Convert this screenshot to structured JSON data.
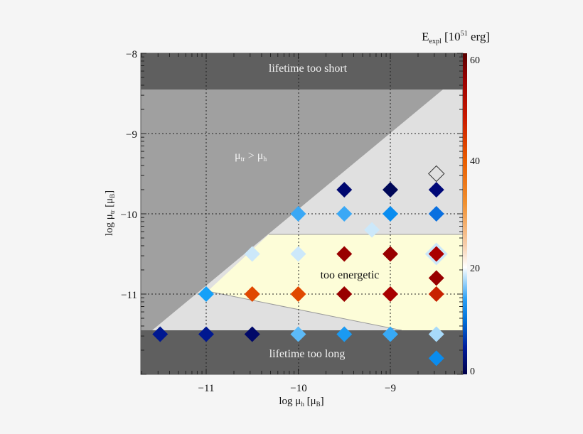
{
  "chart_data": {
    "type": "scatter",
    "title": "",
    "xlabel": "log μ_h [μ_B]",
    "ylabel": "log μ_tr [μ_B]",
    "colorbar_label": "E_expl [10^51 erg]",
    "xlim": [
      -11.7,
      -8.25
    ],
    "ylim": [
      -12.0,
      -8.0
    ],
    "x_ticks": [
      -11,
      -10,
      -9
    ],
    "x_tick_labels": [
      "−11",
      "−10",
      "−9"
    ],
    "y_ticks": [
      -8,
      -9,
      -10,
      -11
    ],
    "y_tick_labels": [
      "−8",
      "−9",
      "−10",
      "−11"
    ],
    "colorbar": {
      "range": [
        0,
        60
      ],
      "ticks": [
        0,
        20,
        40,
        60
      ],
      "tick_labels": [
        "0",
        "20",
        "40",
        "60"
      ],
      "stops": [
        {
          "v": 0,
          "color": "#00004a"
        },
        {
          "v": 5,
          "color": "#001c9c"
        },
        {
          "v": 10,
          "color": "#0070d8"
        },
        {
          "v": 14,
          "color": "#2aa0f5"
        },
        {
          "v": 18,
          "color": "#b8e0fb"
        },
        {
          "v": 20,
          "color": "#ffffff"
        },
        {
          "v": 24,
          "color": "#f7d0b0"
        },
        {
          "v": 32,
          "color": "#f09030"
        },
        {
          "v": 40,
          "color": "#e85c00"
        },
        {
          "v": 48,
          "color": "#c81800"
        },
        {
          "v": 55,
          "color": "#9a0000"
        },
        {
          "v": 60,
          "color": "#5a0000"
        }
      ]
    },
    "grid": true,
    "regions": [
      {
        "name": "lifetime too short",
        "label": "lifetime too short",
        "color": "#5f5f5f"
      },
      {
        "name": "mu_tr greater than mu_h",
        "label_main": "μ",
        "label_sub1": "tr",
        "label_mid": " > μ",
        "label_sub2": "h",
        "color": "#a0a0a0"
      },
      {
        "name": "allowed",
        "color": "#e0e0e0"
      },
      {
        "name": "too energetic",
        "label": "too energetic",
        "color": "#fdfdd8"
      },
      {
        "name": "lifetime too long",
        "label": "lifetime too long",
        "color": "#5f5f5f"
      }
    ],
    "points": [
      {
        "x": -11.5,
        "y": -11.5,
        "e": 2,
        "color": "#001890"
      },
      {
        "x": -11.0,
        "y": -11.5,
        "e": 2,
        "color": "#001890"
      },
      {
        "x": -10.5,
        "y": -11.5,
        "e": 0.5,
        "color": "#000868"
      },
      {
        "x": -10.0,
        "y": -11.5,
        "e": 15,
        "color": "#5cbaf8"
      },
      {
        "x": -9.5,
        "y": -11.5,
        "e": 13,
        "color": "#1a9af2"
      },
      {
        "x": -9.0,
        "y": -11.5,
        "e": 14,
        "color": "#38aaf6"
      },
      {
        "x": -8.5,
        "y": -11.5,
        "e": 17,
        "color": "#a8dafa"
      },
      {
        "x": -8.5,
        "y": -11.8,
        "e": 12,
        "color": "#0a8cee"
      },
      {
        "x": -11.0,
        "y": -11.0,
        "e": 13,
        "color": "#14a0f8"
      },
      {
        "x": -10.5,
        "y": -11.0,
        "e": 42,
        "color": "#e04800"
      },
      {
        "x": -10.0,
        "y": -11.0,
        "e": 42,
        "color": "#e04800"
      },
      {
        "x": -9.5,
        "y": -11.0,
        "e": 57,
        "color": "#980000"
      },
      {
        "x": -9.0,
        "y": -11.0,
        "e": 55,
        "color": "#a80000"
      },
      {
        "x": -8.5,
        "y": -11.0,
        "e": 48,
        "color": "#c82200"
      },
      {
        "x": -8.5,
        "y": -10.8,
        "e": 57,
        "color": "#980000"
      },
      {
        "x": -10.5,
        "y": -10.5,
        "e": 18,
        "color": "#cce8fa"
      },
      {
        "x": -10.0,
        "y": -10.5,
        "e": 18,
        "color": "#cce8fa"
      },
      {
        "x": -9.5,
        "y": -10.5,
        "e": 57,
        "color": "#980000"
      },
      {
        "x": -9.0,
        "y": -10.5,
        "e": 57,
        "color": "#980000"
      },
      {
        "x": -8.5,
        "y": -10.5,
        "e": 54,
        "color": "#aa0000",
        "halo": "#cce8fa"
      },
      {
        "x": -9.2,
        "y": -10.2,
        "e": 18,
        "color": "#cce8fa"
      },
      {
        "x": -10.0,
        "y": -10.0,
        "e": 14,
        "color": "#3aa8f5"
      },
      {
        "x": -9.5,
        "y": -10.0,
        "e": 14,
        "color": "#3aa8f5"
      },
      {
        "x": -9.0,
        "y": -10.0,
        "e": 12,
        "color": "#0a8df0"
      },
      {
        "x": -8.5,
        "y": -10.0,
        "e": 10,
        "color": "#0a70e0"
      },
      {
        "x": -9.5,
        "y": -9.7,
        "e": 0.5,
        "color": "#000870"
      },
      {
        "x": -9.0,
        "y": -9.7,
        "e": 0.5,
        "color": "#000858"
      },
      {
        "x": -8.5,
        "y": -9.7,
        "e": 1,
        "color": "#000878"
      },
      {
        "x": -8.5,
        "y": -9.5,
        "e": null,
        "color": "none",
        "outline": true
      }
    ]
  }
}
